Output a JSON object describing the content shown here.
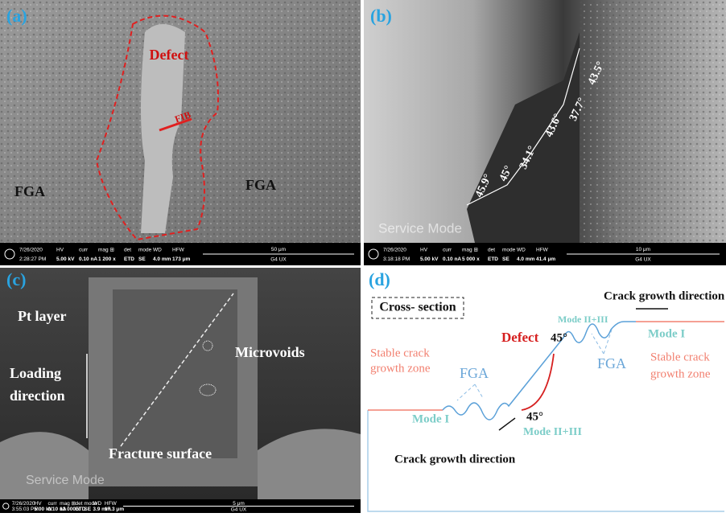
{
  "panel_a": {
    "label": "(a)",
    "defect": "Defect",
    "fib": "FIB",
    "fga_left": "FGA",
    "fga_right": "FGA",
    "info": {
      "date": "7/26/2020",
      "time": "2:28:27 PM",
      "headers": [
        "HV",
        "curr",
        "mag ⊞",
        "det",
        "mode",
        "WD",
        "HFW"
      ],
      "values": [
        "5.00 kV",
        "0.10 nA",
        "1 200 x",
        "ETD",
        "SE",
        "4.0 mm",
        "173 μm"
      ],
      "scale": "50 μm",
      "device": "G4 UX"
    }
  },
  "panel_b": {
    "label": "(b)",
    "angles": [
      "45.9°",
      "45°",
      "34.1°",
      "43.6°",
      "37.7°",
      "43.5°"
    ],
    "watermark": "Service Mode",
    "info": {
      "date": "7/26/2020",
      "time": "3:18:18 PM",
      "headers": [
        "HV",
        "curr",
        "mag ⊞",
        "det",
        "mode",
        "WD",
        "HFW"
      ],
      "values": [
        "5.00 kV",
        "0.10 nA",
        "5 000 x",
        "ETD",
        "SE",
        "4.0 mm",
        "41.4 μm"
      ],
      "scale": "10 μm",
      "device": "G4 UX"
    }
  },
  "panel_c": {
    "label": "(c)",
    "pt_layer": "Pt layer",
    "microvoids": "Microvoids",
    "loading": [
      "Loading",
      "direction"
    ],
    "fracture": "Fracture surface",
    "watermark": "Service Mode",
    "info": {
      "date": "7/26/2020",
      "time": "3:55:03 PM",
      "headers": [
        "HV",
        "curr",
        "mag ⊞",
        "det",
        "mode",
        "WD",
        "HFW"
      ],
      "values": [
        "5.00 kV",
        "0.10 nA",
        "12 000 x",
        "ETD",
        "SE",
        "3.9 mm",
        "17.3 μm"
      ],
      "scale": "5 μm",
      "device": "G4 UX"
    }
  },
  "panel_d": {
    "label": "(d)",
    "cross_section": "Cross- section",
    "crack_top": "Crack growth direction",
    "crack_bottom": "Crack growth direction",
    "mode_23_top": "Mode II+III",
    "mode_23_bottom": "Mode II+III",
    "mode_1_left": "Mode I",
    "mode_1_right": "Mode I",
    "defect": "Defect",
    "angle_top": "45°",
    "angle_bottom": "45°",
    "fga_left": "FGA",
    "fga_right": "FGA",
    "stable_left": [
      "Stable crack",
      "growth zone"
    ],
    "stable_right": [
      "Stable crack",
      "growth zone"
    ]
  }
}
